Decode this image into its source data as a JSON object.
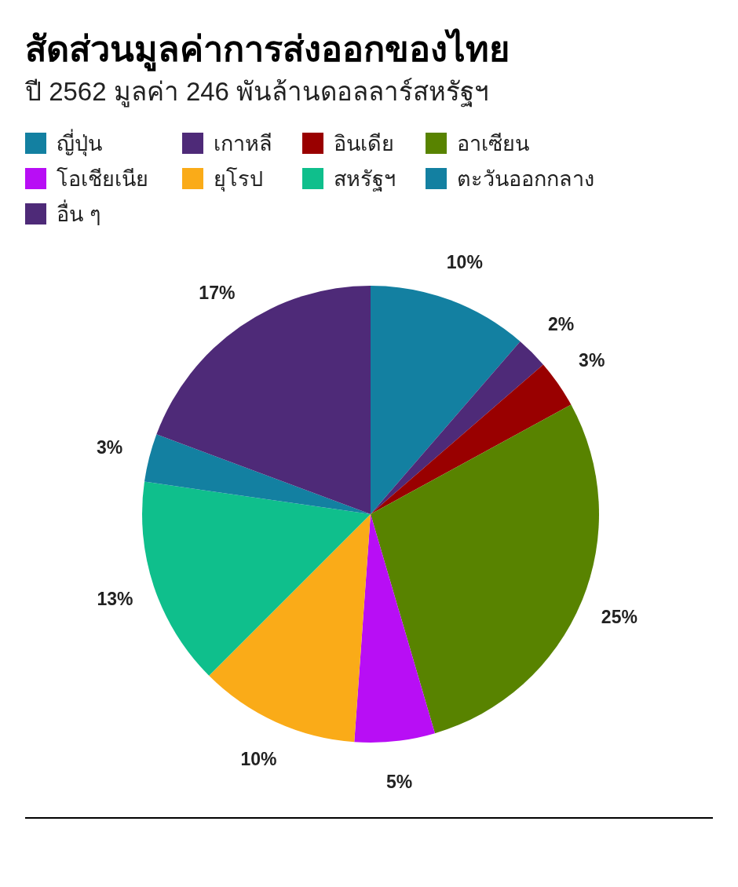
{
  "chart_data": {
    "type": "pie",
    "title": "สัดส่วนมูลค่าการส่งออกของไทย",
    "subtitle": "ปี 2562 มูลค่า 246 พันล้านดอลลาร์สหรัฐฯ",
    "categories": [
      "ญี่ปุ่น",
      "เกาหลี",
      "อินเดีย",
      "อาเซียน",
      "โอเชียเนีย",
      "ยุโรป",
      "สหรัฐฯ",
      "ตะวันออกกลาง",
      "อื่น ๆ"
    ],
    "values": [
      10,
      2,
      3,
      25,
      5,
      10,
      13,
      3,
      17
    ],
    "colors": [
      "#1380a1",
      "#4e2a78",
      "#990000",
      "#588300",
      "#b80ef5",
      "#faab18",
      "#0fbf8c",
      "#1380a1",
      "#4e2a78"
    ],
    "value_labels": [
      "10%",
      "2%",
      "3%",
      "25%",
      "5%",
      "10%",
      "13%",
      "3%",
      "17%"
    ],
    "legend": "top"
  }
}
